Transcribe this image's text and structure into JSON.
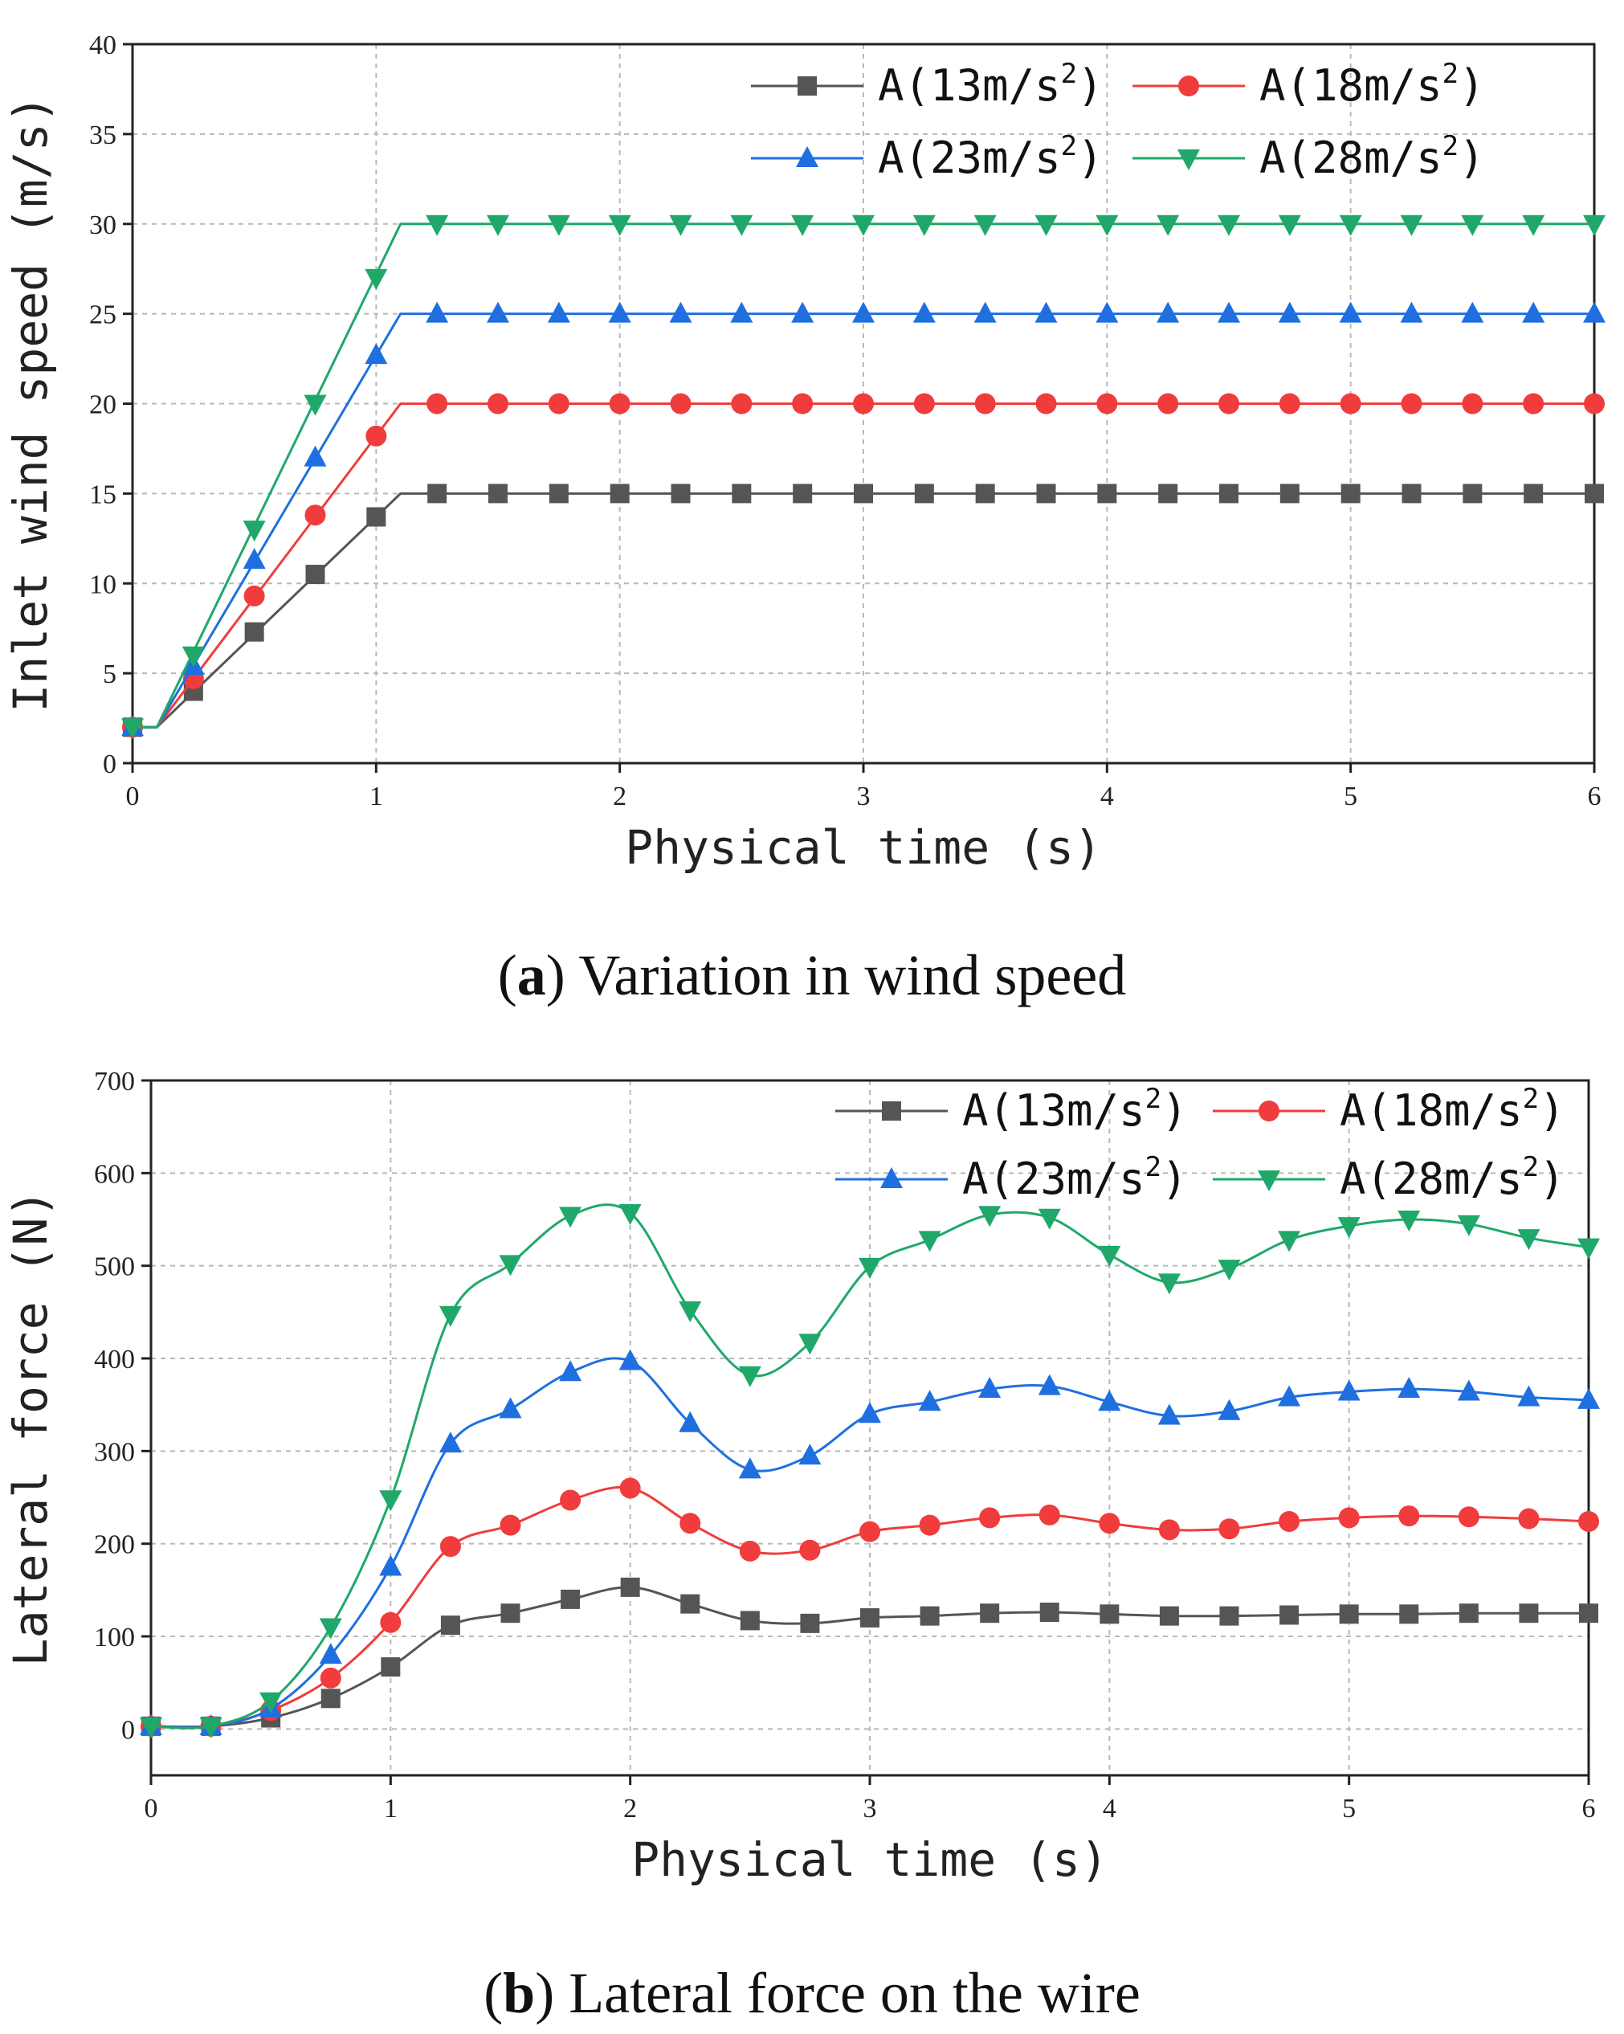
{
  "chart_data": [
    {
      "type": "line",
      "caption_letter": "a",
      "caption_text": "Variation in wind speed",
      "xlabel": "Physical time  (s)",
      "ylabel": "Inlet wind speed  (m/s)",
      "xlim": [
        0,
        6
      ],
      "ylim": [
        0,
        40
      ],
      "xticks": [
        0,
        1,
        2,
        3,
        4,
        5,
        6
      ],
      "yticks": [
        0,
        5,
        10,
        15,
        20,
        25,
        30,
        35,
        40
      ],
      "grid": true,
      "legend_position": "top-right",
      "series": [
        {
          "name": "A(13m/s²)",
          "base": "A(13m/s",
          "sup": "2",
          "close": ")",
          "color": "#555555",
          "marker": "square",
          "line": [
            [
              0,
              2
            ],
            [
              0.1,
              2
            ],
            [
              1.1,
              15
            ],
            [
              6,
              15
            ]
          ],
          "points": [
            [
              0,
              2
            ],
            [
              0.25,
              4
            ],
            [
              0.5,
              7.3
            ],
            [
              0.75,
              10.5
            ],
            [
              1,
              13.7
            ],
            [
              1.25,
              15
            ],
            [
              1.5,
              15
            ],
            [
              1.75,
              15
            ],
            [
              2,
              15
            ],
            [
              2.25,
              15
            ],
            [
              2.5,
              15
            ],
            [
              2.75,
              15
            ],
            [
              3,
              15
            ],
            [
              3.25,
              15
            ],
            [
              3.5,
              15
            ],
            [
              3.75,
              15
            ],
            [
              4,
              15
            ],
            [
              4.25,
              15
            ],
            [
              4.5,
              15
            ],
            [
              4.75,
              15
            ],
            [
              5,
              15
            ],
            [
              5.25,
              15
            ],
            [
              5.5,
              15
            ],
            [
              5.75,
              15
            ],
            [
              6,
              15
            ]
          ]
        },
        {
          "name": "A(18m/s²)",
          "base": "A(18m/s",
          "sup": "2",
          "close": ")",
          "color": "#f03c3c",
          "marker": "circle",
          "line": [
            [
              0,
              2
            ],
            [
              0.1,
              2
            ],
            [
              1.1,
              20
            ],
            [
              6,
              20
            ]
          ],
          "points": [
            [
              0,
              2
            ],
            [
              0.25,
              4.7
            ],
            [
              0.5,
              9.3
            ],
            [
              0.75,
              13.8
            ],
            [
              1,
              18.2
            ],
            [
              1.25,
              20
            ],
            [
              1.5,
              20
            ],
            [
              1.75,
              20
            ],
            [
              2,
              20
            ],
            [
              2.25,
              20
            ],
            [
              2.5,
              20
            ],
            [
              2.75,
              20
            ],
            [
              3,
              20
            ],
            [
              3.25,
              20
            ],
            [
              3.5,
              20
            ],
            [
              3.75,
              20
            ],
            [
              4,
              20
            ],
            [
              4.25,
              20
            ],
            [
              4.5,
              20
            ],
            [
              4.75,
              20
            ],
            [
              5,
              20
            ],
            [
              5.25,
              20
            ],
            [
              5.5,
              20
            ],
            [
              5.75,
              20
            ],
            [
              6,
              20
            ]
          ]
        },
        {
          "name": "A(23m/s²)",
          "base": "A(23m/s",
          "sup": "2",
          "close": ")",
          "color": "#1f6fe0",
          "marker": "triangle-up",
          "line": [
            [
              0,
              2
            ],
            [
              0.1,
              2
            ],
            [
              1.1,
              25
            ],
            [
              6,
              25
            ]
          ],
          "points": [
            [
              0,
              2
            ],
            [
              0.25,
              5.4
            ],
            [
              0.5,
              11.3
            ],
            [
              0.75,
              17
            ],
            [
              1,
              22.7
            ],
            [
              1.25,
              25
            ],
            [
              1.5,
              25
            ],
            [
              1.75,
              25
            ],
            [
              2,
              25
            ],
            [
              2.25,
              25
            ],
            [
              2.5,
              25
            ],
            [
              2.75,
              25
            ],
            [
              3,
              25
            ],
            [
              3.25,
              25
            ],
            [
              3.5,
              25
            ],
            [
              3.75,
              25
            ],
            [
              4,
              25
            ],
            [
              4.25,
              25
            ],
            [
              4.5,
              25
            ],
            [
              4.75,
              25
            ],
            [
              5,
              25
            ],
            [
              5.25,
              25
            ],
            [
              5.5,
              25
            ],
            [
              5.75,
              25
            ],
            [
              6,
              25
            ]
          ]
        },
        {
          "name": "A(28m/s²)",
          "base": "A(28m/s",
          "sup": "2",
          "close": ")",
          "color": "#1fa86a",
          "marker": "triangle-down",
          "line": [
            [
              0,
              2
            ],
            [
              0.1,
              2
            ],
            [
              1.1,
              30
            ],
            [
              6,
              30
            ]
          ],
          "points": [
            [
              0,
              2
            ],
            [
              0.25,
              6
            ],
            [
              0.5,
              13
            ],
            [
              0.75,
              20
            ],
            [
              1,
              27
            ],
            [
              1.25,
              30
            ],
            [
              1.5,
              30
            ],
            [
              1.75,
              30
            ],
            [
              2,
              30
            ],
            [
              2.25,
              30
            ],
            [
              2.5,
              30
            ],
            [
              2.75,
              30
            ],
            [
              3,
              30
            ],
            [
              3.25,
              30
            ],
            [
              3.5,
              30
            ],
            [
              3.75,
              30
            ],
            [
              4,
              30
            ],
            [
              4.25,
              30
            ],
            [
              4.5,
              30
            ],
            [
              4.75,
              30
            ],
            [
              5,
              30
            ],
            [
              5.25,
              30
            ],
            [
              5.5,
              30
            ],
            [
              5.75,
              30
            ],
            [
              6,
              30
            ]
          ]
        }
      ]
    },
    {
      "type": "line",
      "caption_letter": "b",
      "caption_text": "Lateral force on the wire",
      "xlabel": "Physical time  (s)",
      "ylabel": "Lateral force  (N)",
      "xlim": [
        0,
        6
      ],
      "ylim": [
        -50,
        700
      ],
      "xticks": [
        0,
        1,
        2,
        3,
        4,
        5,
        6
      ],
      "yticks": [
        0,
        100,
        200,
        300,
        400,
        500,
        600,
        700
      ],
      "grid": true,
      "legend_position": "top-right",
      "series": [
        {
          "name": "A(13m/s²)",
          "base": "A(13m/s",
          "sup": "2",
          "close": ")",
          "color": "#555555",
          "marker": "square",
          "values": [
            [
              0,
              3
            ],
            [
              0.25,
              3
            ],
            [
              0.5,
              12
            ],
            [
              0.75,
              33
            ],
            [
              1,
              67
            ],
            [
              1.25,
              112
            ],
            [
              1.5,
              125
            ],
            [
              1.75,
              140
            ],
            [
              2,
              153
            ],
            [
              2.25,
              135
            ],
            [
              2.5,
              117
            ],
            [
              2.75,
              114
            ],
            [
              3,
              120
            ],
            [
              3.25,
              122
            ],
            [
              3.5,
              125
            ],
            [
              3.75,
              126
            ],
            [
              4,
              124
            ],
            [
              4.25,
              122
            ],
            [
              4.5,
              122
            ],
            [
              4.75,
              123
            ],
            [
              5,
              124
            ],
            [
              5.25,
              124
            ],
            [
              5.5,
              125
            ],
            [
              5.75,
              125
            ],
            [
              6,
              125
            ]
          ]
        },
        {
          "name": "A(18m/s²)",
          "base": "A(18m/s",
          "sup": "2",
          "close": ")",
          "color": "#f03c3c",
          "marker": "circle",
          "values": [
            [
              0,
              3
            ],
            [
              0.25,
              3
            ],
            [
              0.5,
              20
            ],
            [
              0.75,
              55
            ],
            [
              1,
              115
            ],
            [
              1.25,
              197
            ],
            [
              1.5,
              220
            ],
            [
              1.75,
              247
            ],
            [
              2,
              260
            ],
            [
              2.25,
              222
            ],
            [
              2.5,
              192
            ],
            [
              2.75,
              193
            ],
            [
              3,
              213
            ],
            [
              3.25,
              220
            ],
            [
              3.5,
              228
            ],
            [
              3.75,
              231
            ],
            [
              4,
              222
            ],
            [
              4.25,
              215
            ],
            [
              4.5,
              216
            ],
            [
              4.75,
              224
            ],
            [
              5,
              228
            ],
            [
              5.25,
              230
            ],
            [
              5.5,
              229
            ],
            [
              5.75,
              227
            ],
            [
              6,
              224
            ]
          ]
        },
        {
          "name": "A(23m/s²)",
          "base": "A(23m/s",
          "sup": "2",
          "close": ")",
          "color": "#1f6fe0",
          "marker": "triangle-up",
          "values": [
            [
              0,
              3
            ],
            [
              0.25,
              3
            ],
            [
              0.5,
              22
            ],
            [
              0.75,
              80
            ],
            [
              1,
              175
            ],
            [
              1.25,
              308
            ],
            [
              1.5,
              345
            ],
            [
              1.75,
              385
            ],
            [
              2,
              397
            ],
            [
              2.25,
              330
            ],
            [
              2.5,
              280
            ],
            [
              2.75,
              295
            ],
            [
              3,
              340
            ],
            [
              3.25,
              353
            ],
            [
              3.5,
              367
            ],
            [
              3.75,
              370
            ],
            [
              4,
              353
            ],
            [
              4.25,
              338
            ],
            [
              4.5,
              343
            ],
            [
              4.75,
              358
            ],
            [
              5,
              364
            ],
            [
              5.25,
              367
            ],
            [
              5.5,
              364
            ],
            [
              5.75,
              358
            ],
            [
              6,
              355
            ]
          ]
        },
        {
          "name": "A(28m/s²)",
          "base": "A(28m/s",
          "sup": "2",
          "close": ")",
          "color": "#1fa86a",
          "marker": "triangle-down",
          "values": [
            [
              0,
              3
            ],
            [
              0.25,
              3
            ],
            [
              0.5,
              30
            ],
            [
              0.75,
              110
            ],
            [
              1,
              248
            ],
            [
              1.25,
              447
            ],
            [
              1.5,
              502
            ],
            [
              1.75,
              554
            ],
            [
              2,
              557
            ],
            [
              2.25,
              452
            ],
            [
              2.5,
              382
            ],
            [
              2.75,
              417
            ],
            [
              3,
              499
            ],
            [
              3.25,
              528
            ],
            [
              3.5,
              555
            ],
            [
              3.75,
              552
            ],
            [
              4,
              512
            ],
            [
              4.25,
              482
            ],
            [
              4.5,
              497
            ],
            [
              4.75,
              528
            ],
            [
              5,
              543
            ],
            [
              5.25,
              550
            ],
            [
              5.5,
              545
            ],
            [
              5.75,
              530
            ],
            [
              6,
              520
            ]
          ]
        }
      ]
    }
  ]
}
